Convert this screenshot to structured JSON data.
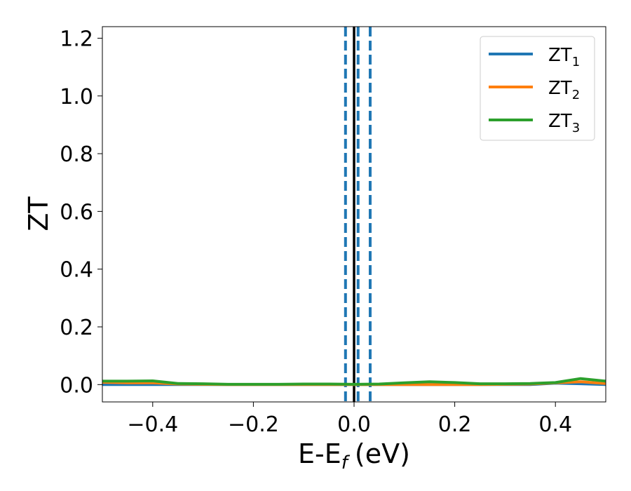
{
  "chart_data": {
    "type": "line",
    "xlabel": "E-E",
    "xlabel_sub": "f",
    "xlabel_unit": "(eV)",
    "ylabel": "ZT",
    "xlim": [
      -0.5,
      0.5
    ],
    "ylim": [
      -0.06,
      1.24
    ],
    "xticks": [
      -0.4,
      -0.2,
      0.0,
      0.2,
      0.4
    ],
    "xtick_labels": [
      "−0.4",
      "−0.2",
      "0.0",
      "0.2",
      "0.4"
    ],
    "yticks": [
      0.0,
      0.2,
      0.4,
      0.6,
      0.8,
      1.0,
      1.2
    ],
    "ytick_labels": [
      "0.0",
      "0.2",
      "0.4",
      "0.6",
      "0.8",
      "1.0",
      "1.2"
    ],
    "grid": false,
    "legend_position": "top-right",
    "vlines": [
      {
        "x": 0.0,
        "style": "solid",
        "color": "#000000"
      },
      {
        "x": -0.017,
        "style": "dashed",
        "color": "#1f77b4"
      },
      {
        "x": 0.008,
        "style": "dashed",
        "color": "#1f77b4"
      },
      {
        "x": 0.032,
        "style": "dashed",
        "color": "#1f77b4"
      }
    ],
    "x": [
      -0.5,
      -0.45,
      -0.4,
      -0.35,
      -0.3,
      -0.25,
      -0.2,
      -0.15,
      -0.1,
      -0.05,
      0.0,
      0.05,
      0.1,
      0.15,
      0.2,
      0.25,
      0.3,
      0.35,
      0.4,
      0.45,
      0.5
    ],
    "series": [
      {
        "name": "ZT",
        "sub": "1",
        "color": "#1f77b4",
        "values": [
          0.0,
          0.0,
          0.0,
          0.0,
          0.0,
          0.0,
          0.0,
          0.0,
          0.0,
          0.0,
          0.0,
          0.0,
          0.0,
          0.0,
          0.0,
          0.0,
          0.0,
          0.0,
          0.005,
          0.003,
          0.0
        ]
      },
      {
        "name": "ZT",
        "sub": "2",
        "color": "#ff7f0e",
        "values": [
          0.008,
          0.006,
          0.006,
          0.002,
          0.001,
          0.0,
          0.0,
          0.0,
          0.0,
          0.0,
          0.0,
          0.0,
          0.0,
          0.0,
          0.0,
          0.0,
          0.001,
          0.002,
          0.006,
          0.01,
          0.004
        ]
      },
      {
        "name": "ZT",
        "sub": "3",
        "color": "#2ca02c",
        "values": [
          0.012,
          0.012,
          0.013,
          0.004,
          0.003,
          0.001,
          0.001,
          0.001,
          0.002,
          0.002,
          0.001,
          0.002,
          0.006,
          0.01,
          0.007,
          0.003,
          0.003,
          0.004,
          0.007,
          0.021,
          0.012
        ]
      }
    ]
  }
}
